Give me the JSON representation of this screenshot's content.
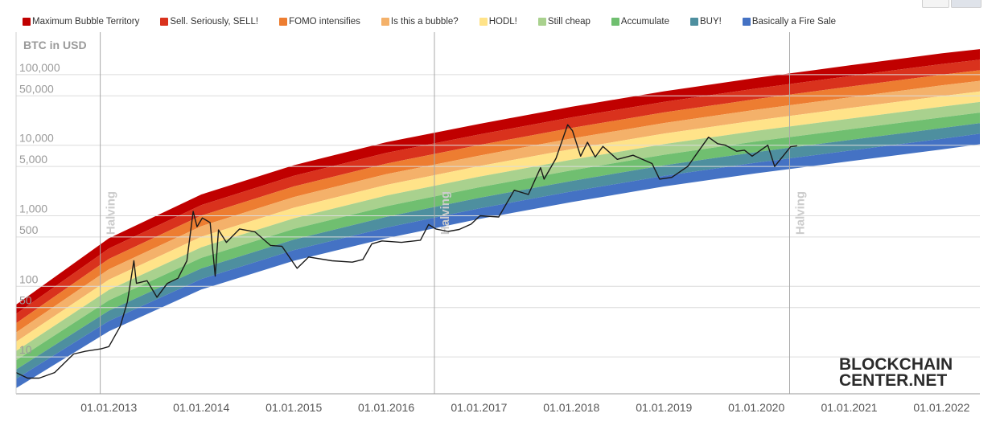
{
  "legend": {
    "items": [
      {
        "label": "Maximum Bubble Territory",
        "color": "#c00000"
      },
      {
        "label": "Sell. Seriously, SELL!",
        "color": "#d9321d"
      },
      {
        "label": "FOMO intensifies",
        "color": "#ed7d31"
      },
      {
        "label": "Is this a bubble?",
        "color": "#f4b16a"
      },
      {
        "label": "HODL!",
        "color": "#ffe389"
      },
      {
        "label": "Still cheap",
        "color": "#a9d18e"
      },
      {
        "label": "Accumulate",
        "color": "#70bf70"
      },
      {
        "label": "BUY!",
        "color": "#4e8f9f"
      },
      {
        "label": "Basically a Fire Sale",
        "color": "#4472c4"
      }
    ]
  },
  "logo": {
    "line1": "BLOCKCHAIN",
    "line2": "CENTER.NET"
  },
  "chart_data": {
    "type": "line",
    "title": "",
    "ylabel": "BTC in USD",
    "yscale": "log",
    "ylim": [
      3,
      400000
    ],
    "xlim": [
      "2012-01-01",
      "2022-06-01"
    ],
    "yticks": [
      {
        "value": 10,
        "label": "10"
      },
      {
        "value": 50,
        "label": "50"
      },
      {
        "value": 100,
        "label": "100"
      },
      {
        "value": 500,
        "label": "500"
      },
      {
        "value": 1000,
        "label": "1,000"
      },
      {
        "value": 5000,
        "label": "5,000"
      },
      {
        "value": 10000,
        "label": "10,000"
      },
      {
        "value": 50000,
        "label": "50,000"
      },
      {
        "value": 100000,
        "label": "100,000"
      }
    ],
    "xticks": [
      {
        "value": "2013-01-01",
        "label": "01.01.2013"
      },
      {
        "value": "2014-01-01",
        "label": "01.01.2014"
      },
      {
        "value": "2015-01-01",
        "label": "01.01.2015"
      },
      {
        "value": "2016-01-01",
        "label": "01.01.2016"
      },
      {
        "value": "2017-01-01",
        "label": "01.01.2017"
      },
      {
        "value": "2018-01-01",
        "label": "01.01.2018"
      },
      {
        "value": "2019-01-01",
        "label": "01.01.2019"
      },
      {
        "value": "2020-01-01",
        "label": "01.01.2020"
      },
      {
        "value": "2021-01-01",
        "label": "01.01.2021"
      },
      {
        "value": "2022-01-01",
        "label": "01.01.2022"
      }
    ],
    "halvings": [
      {
        "date": "2012-11-28",
        "label": "Halving"
      },
      {
        "date": "2016-07-09",
        "label": "Halving"
      },
      {
        "date": "2020-05-11",
        "label": "Halving"
      }
    ],
    "bands": {
      "top_curve": [
        [
          "2012-01-01",
          55
        ],
        [
          "2013-01-01",
          480
        ],
        [
          "2014-01-01",
          2000
        ],
        [
          "2015-01-01",
          5200
        ],
        [
          "2016-01-01",
          11000
        ],
        [
          "2017-01-01",
          20000
        ],
        [
          "2018-01-01",
          35000
        ],
        [
          "2019-01-01",
          58000
        ],
        [
          "2020-01-01",
          90000
        ],
        [
          "2021-01-01",
          135000
        ],
        [
          "2022-01-01",
          200000
        ],
        [
          "2022-06-01",
          230000
        ]
      ],
      "bottom_curve": [
        [
          "2012-01-01",
          3.6
        ],
        [
          "2013-01-01",
          23
        ],
        [
          "2014-01-01",
          90
        ],
        [
          "2015-01-01",
          230
        ],
        [
          "2016-01-01",
          480
        ],
        [
          "2017-01-01",
          900
        ],
        [
          "2018-01-01",
          1560
        ],
        [
          "2019-01-01",
          2600
        ],
        [
          "2020-01-01",
          4000
        ],
        [
          "2021-01-01",
          5900
        ],
        [
          "2022-01-01",
          8700
        ],
        [
          "2022-06-01",
          10300
        ]
      ]
    },
    "series": [
      {
        "values": [
          [
            "2012-01-01",
            6
          ],
          [
            "2012-02-15",
            5
          ],
          [
            "2012-04-01",
            5
          ],
          [
            "2012-06-01",
            6
          ],
          [
            "2012-08-15",
            11
          ],
          [
            "2012-10-01",
            12
          ],
          [
            "2012-12-01",
            13
          ],
          [
            "2013-01-01",
            14
          ],
          [
            "2013-02-15",
            27
          ],
          [
            "2013-03-15",
            60
          ],
          [
            "2013-04-10",
            230
          ],
          [
            "2013-04-20",
            110
          ],
          [
            "2013-06-01",
            120
          ],
          [
            "2013-07-10",
            70
          ],
          [
            "2013-08-20",
            110
          ],
          [
            "2013-10-01",
            130
          ],
          [
            "2013-11-05",
            230
          ],
          [
            "2013-11-30",
            1150
          ],
          [
            "2013-12-15",
            700
          ],
          [
            "2014-01-05",
            930
          ],
          [
            "2014-02-05",
            800
          ],
          [
            "2014-02-25",
            140
          ],
          [
            "2014-03-10",
            630
          ],
          [
            "2014-04-10",
            420
          ],
          [
            "2014-06-01",
            650
          ],
          [
            "2014-08-01",
            590
          ],
          [
            "2014-10-01",
            380
          ],
          [
            "2014-11-15",
            370
          ],
          [
            "2015-01-14",
            180
          ],
          [
            "2015-03-01",
            260
          ],
          [
            "2015-06-01",
            230
          ],
          [
            "2015-08-20",
            220
          ],
          [
            "2015-10-01",
            240
          ],
          [
            "2015-11-05",
            400
          ],
          [
            "2015-12-15",
            440
          ],
          [
            "2016-03-01",
            420
          ],
          [
            "2016-05-15",
            450
          ],
          [
            "2016-06-16",
            750
          ],
          [
            "2016-07-15",
            650
          ],
          [
            "2016-09-01",
            600
          ],
          [
            "2016-10-15",
            640
          ],
          [
            "2016-12-01",
            760
          ],
          [
            "2017-01-05",
            1000
          ],
          [
            "2017-03-20",
            960
          ],
          [
            "2017-05-20",
            2300
          ],
          [
            "2017-07-15",
            2000
          ],
          [
            "2017-09-01",
            4800
          ],
          [
            "2017-09-15",
            3300
          ],
          [
            "2017-11-01",
            6500
          ],
          [
            "2017-12-17",
            19500
          ],
          [
            "2018-01-05",
            16000
          ],
          [
            "2018-02-06",
            7000
          ],
          [
            "2018-03-05",
            11000
          ],
          [
            "2018-04-05",
            6800
          ],
          [
            "2018-05-05",
            9600
          ],
          [
            "2018-07-01",
            6300
          ],
          [
            "2018-09-01",
            7200
          ],
          [
            "2018-11-15",
            5500
          ],
          [
            "2018-12-15",
            3300
          ],
          [
            "2019-02-01",
            3500
          ],
          [
            "2019-04-05",
            5000
          ],
          [
            "2019-05-15",
            8000
          ],
          [
            "2019-06-26",
            13000
          ],
          [
            "2019-08-01",
            10500
          ],
          [
            "2019-09-01",
            10000
          ],
          [
            "2019-10-15",
            8200
          ],
          [
            "2019-11-15",
            8500
          ],
          [
            "2019-12-15",
            7000
          ],
          [
            "2020-02-15",
            10000
          ],
          [
            "2020-03-13",
            5000
          ],
          [
            "2020-04-15",
            7000
          ],
          [
            "2020-05-15",
            9500
          ],
          [
            "2020-06-10",
            9800
          ]
        ]
      }
    ]
  }
}
